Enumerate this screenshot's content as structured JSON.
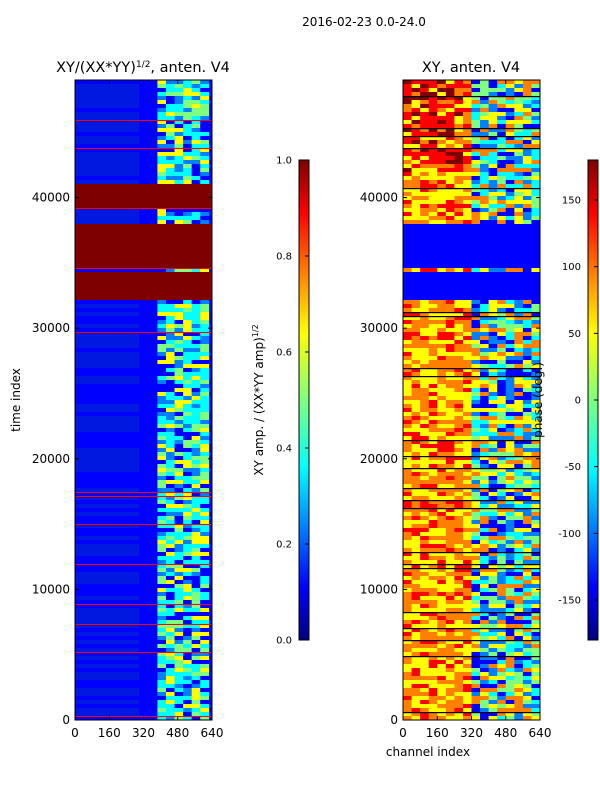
{
  "figure_title": "2016-02-23 0.0-24.0",
  "chart_data": [
    {
      "type": "heatmap",
      "title": "XY/(XX*YY)^1/2, anten. V4",
      "title_main": "XY/(XX*YY)",
      "title_sup": "1/2",
      "title_tail": ", anten. V4",
      "xlabel": "",
      "ylabel": "time index",
      "xlim": [
        0,
        640
      ],
      "ylim": [
        0,
        49000
      ],
      "xticks": [
        0,
        160,
        320,
        480,
        640
      ],
      "yticks": [
        0,
        10000,
        20000,
        30000,
        40000
      ],
      "colormap": "jet",
      "colorbar": {
        "label": "XY amp. / (XX*YY amp)^1/2",
        "label_main": "XY amp. / (XX*YY amp)",
        "label_sup": "1/2",
        "range": [
          0.0,
          1.0
        ],
        "ticks": [
          "0.0",
          "0.2",
          "0.4",
          "0.6",
          "0.8",
          "1.0"
        ]
      },
      "saturated_time_bands": [
        [
          32200,
          34300
        ],
        [
          34500,
          38100
        ],
        [
          39300,
          41000
        ]
      ]
    },
    {
      "type": "heatmap",
      "title": "XY, anten. V4",
      "xlabel": "channel index",
      "ylabel": "",
      "xlim": [
        0,
        640
      ],
      "ylim": [
        0,
        49000
      ],
      "xticks": [
        0,
        160,
        320,
        480,
        640
      ],
      "yticks": [
        0,
        10000,
        20000,
        30000,
        40000
      ],
      "colormap": "jet",
      "colorbar": {
        "label": "phase (deg.)",
        "range": [
          -180,
          180
        ],
        "ticks": [
          "-150",
          "-100",
          "-50",
          "0",
          "50",
          "100",
          "150"
        ]
      },
      "low_phase_time_bands": [
        [
          32200,
          34300
        ],
        [
          34500,
          38100
        ]
      ]
    }
  ],
  "jet_colors": [
    "#00007f",
    "#0000ff",
    "#007fff",
    "#00ffff",
    "#7fff7f",
    "#ffff00",
    "#ff7f00",
    "#ff0000",
    "#7f0000"
  ]
}
